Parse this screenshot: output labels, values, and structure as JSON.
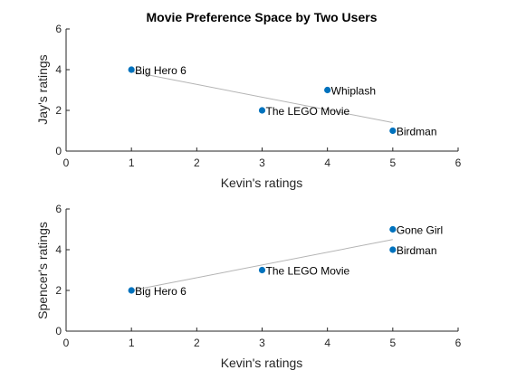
{
  "chart_data": [
    {
      "type": "scatter",
      "title": "Movie Preference Space by Two Users",
      "xlabel": "Kevin's ratings",
      "ylabel": "Jay's ratings",
      "xlim": [
        0,
        6
      ],
      "ylim": [
        0,
        6
      ],
      "xticks": [
        0,
        1,
        2,
        3,
        4,
        5,
        6
      ],
      "yticks": [
        0,
        2,
        4,
        6
      ],
      "grid": false,
      "marker_color": "#0072BD",
      "fit_line_color": "#B4B4B4",
      "points": [
        {
          "label": "Big Hero 6",
          "x": 1,
          "y": 4
        },
        {
          "label": "The LEGO Movie",
          "x": 3,
          "y": 2
        },
        {
          "label": "Whiplash",
          "x": 4,
          "y": 3
        },
        {
          "label": "Birdman",
          "x": 5,
          "y": 1
        }
      ],
      "fit_line": {
        "x": [
          1,
          5
        ],
        "y": [
          3.9,
          1.4
        ]
      }
    },
    {
      "type": "scatter",
      "title": "",
      "xlabel": "Kevin's ratings",
      "ylabel": "Spencer's ratings",
      "xlim": [
        0,
        6
      ],
      "ylim": [
        0,
        6
      ],
      "xticks": [
        0,
        1,
        2,
        3,
        4,
        5,
        6
      ],
      "yticks": [
        0,
        2,
        4,
        6
      ],
      "grid": false,
      "marker_color": "#0072BD",
      "fit_line_color": "#B4B4B4",
      "points": [
        {
          "label": "Big Hero 6",
          "x": 1,
          "y": 2
        },
        {
          "label": "The LEGO Movie",
          "x": 3,
          "y": 3
        },
        {
          "label": "Gone Girl",
          "x": 5,
          "y": 5
        },
        {
          "label": "Birdman",
          "x": 5,
          "y": 4
        }
      ],
      "fit_line": {
        "x": [
          1,
          5
        ],
        "y": [
          2.0,
          4.5
        ]
      }
    }
  ]
}
